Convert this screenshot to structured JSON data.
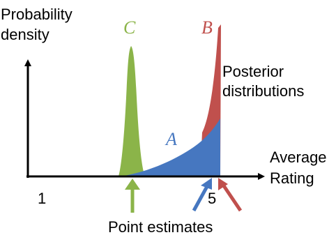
{
  "labels": {
    "y_axis_line1": "Probability",
    "y_axis_line2": "density",
    "x_axis_line1": "Average",
    "x_axis_line2": "Rating",
    "tick_1": "1",
    "tick_5": "5",
    "posterior_line1": "Posterior",
    "posterior_line2": "distributions",
    "point_estimates": "Point estimates"
  },
  "distributions": [
    {
      "id": "A",
      "label": "A",
      "color": "#4677c0"
    },
    {
      "id": "B",
      "label": "B",
      "color": "#c0504d"
    },
    {
      "id": "C",
      "label": "C",
      "color": "#8bb449"
    }
  ],
  "arrow_colors": {
    "axes": "#000000",
    "estimate_c": "#8bb449",
    "estimate_a": "#4677c0",
    "estimate_b": "#c0504d"
  }
}
